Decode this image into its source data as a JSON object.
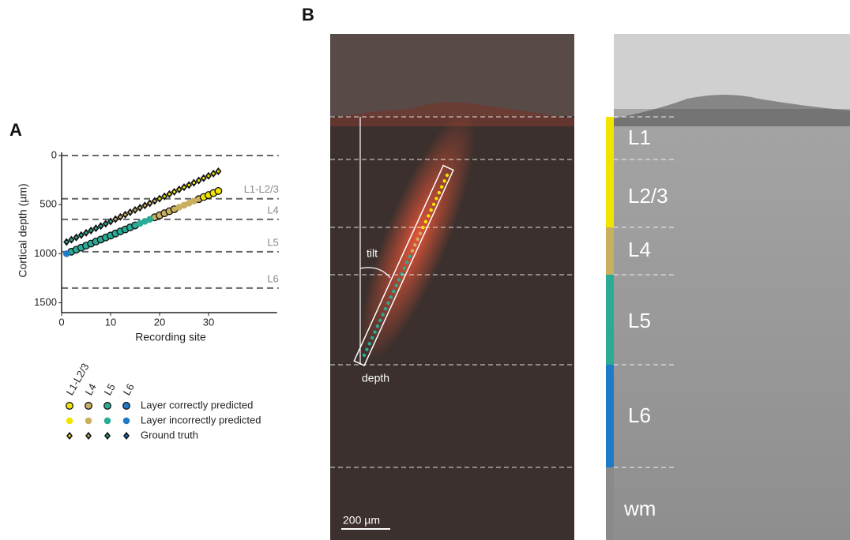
{
  "panel_a": {
    "label": "A"
  },
  "panel_b": {
    "label": "B",
    "tilt_label": "tilt",
    "depth_label": "depth",
    "scale_bar": "200 µm",
    "layers": [
      "L1",
      "L2/3",
      "L4",
      "L5",
      "L6",
      "wm"
    ]
  },
  "chart_data": {
    "type": "scatter",
    "x_label": "Recording site",
    "y_label": "Cortical depth (µm)",
    "xlim": [
      0,
      44
    ],
    "xticks": [
      0,
      10,
      20,
      30
    ],
    "ylim": [
      0,
      1600
    ],
    "yticks": [
      0,
      500,
      1000,
      1500
    ],
    "y_inverted": true,
    "layer_names": [
      "L1-L2/3",
      "L4",
      "L5",
      "L6"
    ],
    "layer_colors": [
      "#f2e400",
      "#c8b060",
      "#2aab96",
      "#1f7ac8"
    ],
    "layer_boundaries": [
      0,
      440,
      650,
      980,
      1350
    ],
    "series": [
      {
        "name": "Layer correctly predicted",
        "marker": "circle-outlined",
        "x": [
          2,
          3,
          4,
          5,
          6,
          7,
          8,
          9,
          10,
          11,
          12,
          13,
          14,
          15,
          19,
          20,
          21,
          22,
          23,
          28,
          29,
          30,
          31,
          32
        ],
        "values": [
          979,
          959,
          938,
          918,
          897,
          876,
          856,
          835,
          815,
          794,
          773,
          753,
          732,
          712,
          629,
          609,
          588,
          567,
          547,
          444,
          423,
          403,
          382,
          361
        ]
      },
      {
        "name": "Layer incorrectly predicted",
        "marker": "circle",
        "x": [
          1,
          16,
          17,
          18,
          24,
          25,
          26,
          27
        ],
        "values": [
          1000,
          691,
          670,
          650,
          526,
          506,
          485,
          464
        ]
      },
      {
        "name": "Ground truth",
        "marker": "diamond",
        "x": [
          1,
          2,
          3,
          4,
          5,
          6,
          7,
          8,
          9,
          10,
          11,
          12,
          13,
          14,
          15,
          16,
          17,
          18,
          19,
          20,
          21,
          22,
          23,
          24,
          25,
          26,
          27,
          28,
          29,
          30,
          31,
          32
        ],
        "values": [
          880,
          857,
          834,
          810,
          787,
          764,
          741,
          718,
          694,
          671,
          648,
          625,
          602,
          578,
          555,
          532,
          509,
          486,
          462,
          439,
          416,
          393,
          370,
          346,
          323,
          300,
          277,
          254,
          230,
          207,
          184,
          161
        ]
      }
    ]
  }
}
